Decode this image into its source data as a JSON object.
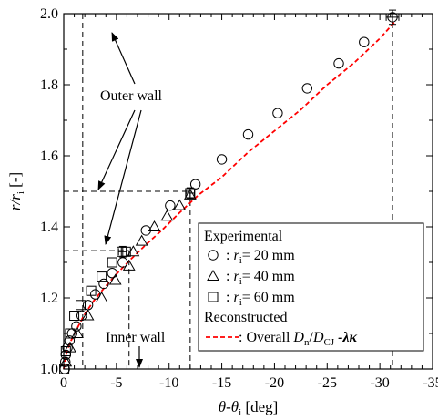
{
  "chart_data": {
    "type": "scatter",
    "xlabel": "θ-θ",
    "xlabel_sub": "i",
    "xlabel_unit": "[deg]",
    "ylabel": "r/r",
    "ylabel_sub": "i",
    "ylabel_unit": "[-]",
    "xlim": [
      0,
      -35
    ],
    "ylim": [
      1.0,
      2.0
    ],
    "x_ticks": [
      0,
      -5,
      -10,
      -15,
      -20,
      -25,
      -30,
      -35
    ],
    "x_tick_labels": [
      "0",
      "-5",
      "-10",
      "-15",
      "-20",
      "-25",
      "-30",
      "-35"
    ],
    "y_ticks": [
      1.0,
      1.2,
      1.4,
      1.6,
      1.8,
      2.0
    ],
    "y_tick_labels": [
      "1.0",
      "1.2",
      "1.4",
      "1.6",
      "1.8",
      "2.0"
    ],
    "reference_lines": {
      "horizontal_dashed": [
        1.0,
        1.333,
        1.5,
        2.0
      ],
      "vertical_dashed": [
        -1.8,
        -6.2,
        -12.0,
        -31.2
      ]
    },
    "annotations": [
      {
        "text": "Outer wall"
      },
      {
        "text": "Inner wall"
      }
    ],
    "legend": {
      "placement": "bottom-right",
      "title": "Experimental",
      "entries": [
        {
          "marker": "circle",
          "prefix": ": ",
          "var": "r",
          "sub": "i",
          "suffix": "= 20 mm"
        },
        {
          "marker": "triangle",
          "prefix": ": ",
          "var": "r",
          "sub": "i",
          "suffix": "= 40 mm"
        },
        {
          "marker": "square",
          "prefix": ": ",
          "var": "r",
          "sub": "i",
          "suffix": "= 60 mm"
        }
      ],
      "reconstructed_title": "Reconstructed",
      "line_entry": {
        "prefix": ": Overall ",
        "D": "D",
        "n": "n",
        "slash": "/",
        "D2": "D",
        "cj": "CJ",
        "tail": " -λκ",
        "color": "#ff0000"
      }
    },
    "series": [
      {
        "marker": "circle",
        "points": [
          [
            -0.1,
            1.0
          ],
          [
            -0.15,
            1.02
          ],
          [
            -0.2,
            1.04
          ],
          [
            -0.35,
            1.06
          ],
          [
            -0.55,
            1.08
          ],
          [
            -0.8,
            1.1
          ],
          [
            -1.2,
            1.12
          ],
          [
            -1.7,
            1.15
          ],
          [
            -2.3,
            1.18
          ],
          [
            -3.0,
            1.21
          ],
          [
            -3.8,
            1.24
          ],
          [
            -4.6,
            1.27
          ],
          [
            -5.6,
            1.3
          ],
          [
            -7.8,
            1.39
          ],
          [
            -10.1,
            1.46
          ],
          [
            -12.5,
            1.52
          ],
          [
            -15.0,
            1.59
          ],
          [
            -17.5,
            1.66
          ],
          [
            -20.3,
            1.72
          ],
          [
            -23.1,
            1.79
          ],
          [
            -26.1,
            1.86
          ],
          [
            -28.5,
            1.92
          ],
          [
            -31.2,
            1.99
          ]
        ]
      },
      {
        "marker": "triangle",
        "points": [
          [
            -0.2,
            1.02
          ],
          [
            -0.6,
            1.06
          ],
          [
            -1.3,
            1.1
          ],
          [
            -2.3,
            1.15
          ],
          [
            -3.6,
            1.2
          ],
          [
            -4.9,
            1.25
          ],
          [
            -6.2,
            1.29
          ],
          [
            -6.6,
            1.33
          ],
          [
            -7.4,
            1.36
          ],
          [
            -8.6,
            1.4
          ],
          [
            -9.8,
            1.43
          ],
          [
            -11.0,
            1.46
          ],
          [
            -12.0,
            1.49
          ]
        ]
      },
      {
        "marker": "square",
        "points": [
          [
            -0.05,
            1.0
          ],
          [
            -0.2,
            1.05
          ],
          [
            -0.6,
            1.1
          ],
          [
            -1.0,
            1.15
          ],
          [
            -1.6,
            1.18
          ],
          [
            -2.6,
            1.22
          ],
          [
            -3.6,
            1.26
          ],
          [
            -4.6,
            1.3
          ],
          [
            -5.5,
            1.33
          ],
          [
            -5.9,
            1.33
          ],
          [
            -12.0,
            1.495
          ]
        ]
      }
    ],
    "error_bars": [
      {
        "x": -31.2,
        "y": 1.99,
        "xerr": 0.6,
        "yerr": 0.02
      },
      {
        "x": -12.0,
        "y": 1.495,
        "xerr": 0.4,
        "yerr": 0.015
      },
      {
        "x": -5.6,
        "y": 1.33,
        "xerr": 0.4,
        "yerr": 0.015
      }
    ],
    "curve": {
      "style": "dashed",
      "color": "#ff0000",
      "points": [
        [
          0.0,
          1.0
        ],
        [
          -0.1,
          1.02
        ],
        [
          -0.3,
          1.05
        ],
        [
          -0.7,
          1.08
        ],
        [
          -1.2,
          1.11
        ],
        [
          -1.9,
          1.15
        ],
        [
          -2.8,
          1.19
        ],
        [
          -3.9,
          1.23
        ],
        [
          -5.1,
          1.27
        ],
        [
          -6.4,
          1.31
        ],
        [
          -7.8,
          1.35
        ],
        [
          -9.3,
          1.39
        ],
        [
          -11.0,
          1.44
        ],
        [
          -12.8,
          1.49
        ],
        [
          -15.0,
          1.54
        ],
        [
          -17.5,
          1.61
        ],
        [
          -20.0,
          1.67
        ],
        [
          -22.5,
          1.73
        ],
        [
          -25.0,
          1.8
        ],
        [
          -27.5,
          1.86
        ],
        [
          -30.0,
          1.93
        ],
        [
          -31.5,
          1.98
        ]
      ]
    }
  }
}
